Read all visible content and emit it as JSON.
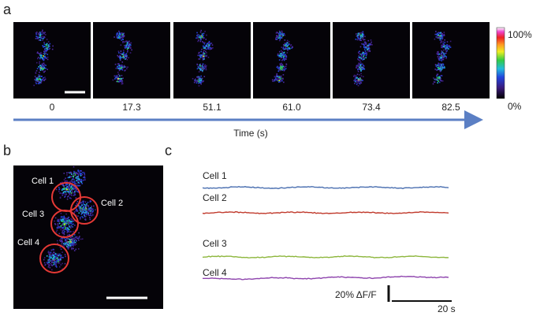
{
  "panel_a": {
    "label": "a",
    "frame_times": [
      "0",
      "17.3",
      "51.1",
      "61.0",
      "73.4",
      "82.5"
    ],
    "colorbar_max": "100%",
    "colorbar_min": "0%",
    "axis_label": "Time (s)"
  },
  "panel_b": {
    "label": "b",
    "cells": [
      "Cell 1",
      "Cell 2",
      "Cell 3",
      "Cell 4"
    ]
  },
  "panel_c": {
    "label": "c",
    "traces": [
      {
        "name": "Cell 1",
        "color": "#4a6fb0"
      },
      {
        "name": "Cell 2",
        "color": "#c0392b"
      },
      {
        "name": "Cell 3",
        "color": "#8db63c"
      },
      {
        "name": "Cell 4",
        "color": "#8e44ad"
      }
    ],
    "scale_y": "20% ΔF/F",
    "scale_x": "20 s"
  }
}
